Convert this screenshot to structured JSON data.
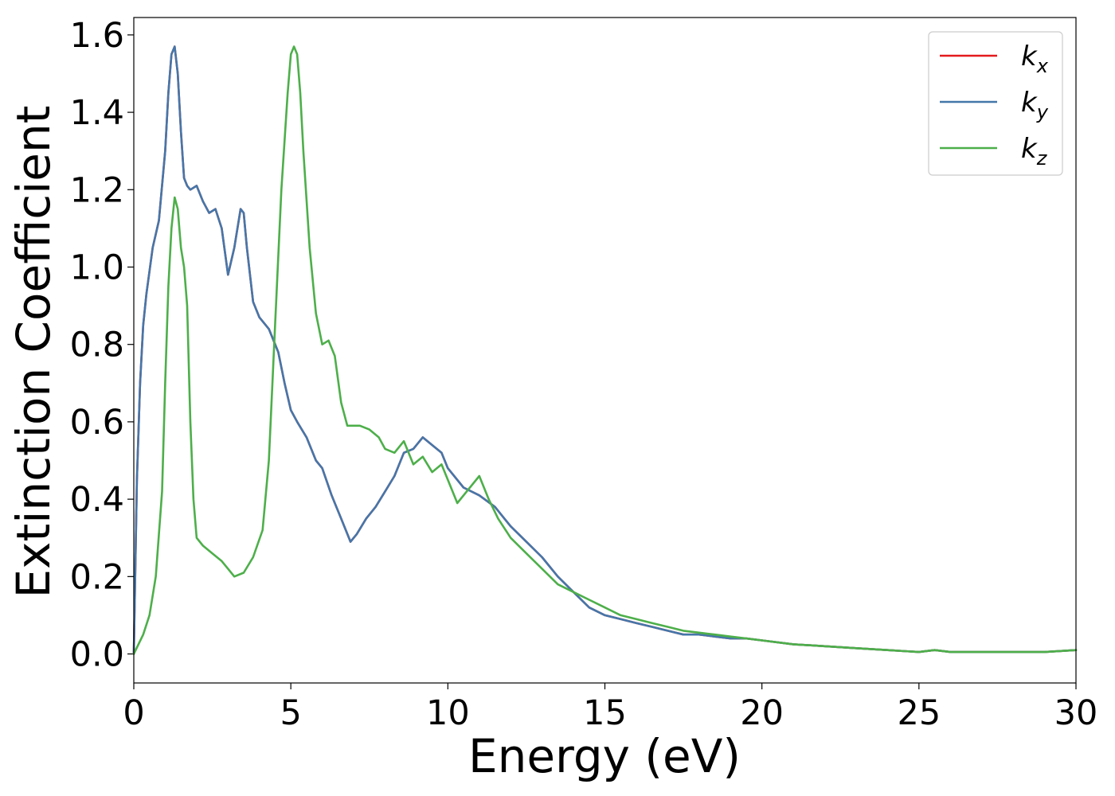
{
  "chart_data": {
    "type": "line",
    "xlabel": "Energy (eV)",
    "ylabel": "Extinction Coefficient",
    "xlim": [
      0,
      30
    ],
    "ylim": [
      -0.075,
      1.645
    ],
    "x_ticks": [
      0,
      5,
      10,
      15,
      20,
      25,
      30
    ],
    "y_ticks": [
      0.0,
      0.2,
      0.4,
      0.6,
      0.8,
      1.0,
      1.2,
      1.4,
      1.6
    ],
    "x_tick_labels": [
      "0",
      "5",
      "10",
      "15",
      "20",
      "25",
      "30"
    ],
    "y_tick_labels": [
      "0.0",
      "0.2",
      "0.4",
      "0.6",
      "0.8",
      "1.0",
      "1.2",
      "1.4",
      "1.6"
    ],
    "grid": false,
    "legend_position": "top-right",
    "series": [
      {
        "name": "k_x",
        "legend_base": "k",
        "legend_sub": "x",
        "color": "#e41a1c",
        "x": [
          0,
          0.1,
          0.2,
          0.3,
          0.4,
          0.6,
          0.8,
          1.0,
          1.1,
          1.2,
          1.3,
          1.4,
          1.5,
          1.6,
          1.7,
          1.8,
          2.0,
          2.2,
          2.4,
          2.6,
          2.8,
          3.0,
          3.2,
          3.4,
          3.5,
          3.6,
          3.8,
          4.0,
          4.3,
          4.6,
          4.8,
          5.0,
          5.2,
          5.5,
          5.8,
          6.0,
          6.3,
          6.6,
          6.9,
          7.1,
          7.4,
          7.7,
          8.0,
          8.3,
          8.6,
          8.9,
          9.2,
          9.5,
          9.8,
          10.0,
          10.5,
          11.0,
          11.5,
          12.0,
          12.5,
          13.0,
          13.5,
          14.0,
          14.5,
          15.0,
          15.5,
          16.0,
          16.5,
          17.0,
          17.5,
          18.0,
          18.5,
          19.0,
          19.5,
          20.0,
          21.0,
          22.0,
          23.0,
          24.0,
          25.0,
          25.5,
          26.0,
          27.0,
          28.0,
          29.0,
          30.0
        ],
        "y": [
          0.0,
          0.45,
          0.7,
          0.85,
          0.93,
          1.05,
          1.12,
          1.3,
          1.45,
          1.55,
          1.57,
          1.5,
          1.35,
          1.23,
          1.21,
          1.2,
          1.21,
          1.17,
          1.14,
          1.15,
          1.1,
          0.98,
          1.05,
          1.15,
          1.14,
          1.05,
          0.91,
          0.87,
          0.84,
          0.78,
          0.7,
          0.63,
          0.6,
          0.56,
          0.5,
          0.48,
          0.41,
          0.35,
          0.29,
          0.31,
          0.35,
          0.38,
          0.42,
          0.46,
          0.52,
          0.53,
          0.56,
          0.54,
          0.52,
          0.48,
          0.43,
          0.41,
          0.38,
          0.33,
          0.29,
          0.25,
          0.2,
          0.16,
          0.12,
          0.1,
          0.09,
          0.08,
          0.07,
          0.06,
          0.05,
          0.05,
          0.045,
          0.04,
          0.04,
          0.035,
          0.025,
          0.02,
          0.015,
          0.01,
          0.005,
          0.01,
          0.005,
          0.005,
          0.005,
          0.005,
          0.01
        ]
      },
      {
        "name": "k_y",
        "legend_base": "k",
        "legend_sub": "y",
        "color": "#4477aa",
        "x": [
          0,
          0.1,
          0.2,
          0.3,
          0.4,
          0.6,
          0.8,
          1.0,
          1.1,
          1.2,
          1.3,
          1.4,
          1.5,
          1.6,
          1.7,
          1.8,
          2.0,
          2.2,
          2.4,
          2.6,
          2.8,
          3.0,
          3.2,
          3.4,
          3.5,
          3.6,
          3.8,
          4.0,
          4.3,
          4.6,
          4.8,
          5.0,
          5.2,
          5.5,
          5.8,
          6.0,
          6.3,
          6.6,
          6.9,
          7.1,
          7.4,
          7.7,
          8.0,
          8.3,
          8.6,
          8.9,
          9.2,
          9.5,
          9.8,
          10.0,
          10.5,
          11.0,
          11.5,
          12.0,
          12.5,
          13.0,
          13.5,
          14.0,
          14.5,
          15.0,
          15.5,
          16.0,
          16.5,
          17.0,
          17.5,
          18.0,
          18.5,
          19.0,
          19.5,
          20.0,
          21.0,
          22.0,
          23.0,
          24.0,
          25.0,
          25.5,
          26.0,
          27.0,
          28.0,
          29.0,
          30.0
        ],
        "y": [
          0.0,
          0.45,
          0.7,
          0.85,
          0.93,
          1.05,
          1.12,
          1.3,
          1.45,
          1.55,
          1.57,
          1.5,
          1.35,
          1.23,
          1.21,
          1.2,
          1.21,
          1.17,
          1.14,
          1.15,
          1.1,
          0.98,
          1.05,
          1.15,
          1.14,
          1.05,
          0.91,
          0.87,
          0.84,
          0.78,
          0.7,
          0.63,
          0.6,
          0.56,
          0.5,
          0.48,
          0.41,
          0.35,
          0.29,
          0.31,
          0.35,
          0.38,
          0.42,
          0.46,
          0.52,
          0.53,
          0.56,
          0.54,
          0.52,
          0.48,
          0.43,
          0.41,
          0.38,
          0.33,
          0.29,
          0.25,
          0.2,
          0.16,
          0.12,
          0.1,
          0.09,
          0.08,
          0.07,
          0.06,
          0.05,
          0.05,
          0.045,
          0.04,
          0.04,
          0.035,
          0.025,
          0.02,
          0.015,
          0.01,
          0.005,
          0.01,
          0.005,
          0.005,
          0.005,
          0.005,
          0.01
        ]
      },
      {
        "name": "k_z",
        "legend_base": "k",
        "legend_sub": "z",
        "color": "#4daf4a",
        "x": [
          0,
          0.3,
          0.5,
          0.7,
          0.9,
          1.0,
          1.1,
          1.2,
          1.3,
          1.4,
          1.5,
          1.6,
          1.7,
          1.8,
          1.9,
          2.0,
          2.2,
          2.5,
          2.8,
          3.0,
          3.2,
          3.5,
          3.8,
          4.1,
          4.3,
          4.5,
          4.7,
          4.9,
          5.0,
          5.1,
          5.2,
          5.3,
          5.4,
          5.6,
          5.8,
          6.0,
          6.2,
          6.4,
          6.6,
          6.8,
          7.0,
          7.2,
          7.5,
          7.8,
          8.0,
          8.3,
          8.6,
          8.9,
          9.2,
          9.5,
          9.8,
          10.0,
          10.3,
          10.6,
          11.0,
          11.3,
          11.6,
          12.0,
          12.5,
          13.0,
          13.5,
          14.0,
          14.5,
          15.0,
          15.5,
          16.0,
          16.5,
          17.0,
          17.5,
          18.0,
          18.5,
          19.0,
          19.5,
          20.0,
          21.0,
          22.0,
          23.0,
          24.0,
          25.0,
          25.5,
          26.0,
          27.0,
          28.0,
          29.0,
          30.0
        ],
        "y": [
          0.0,
          0.05,
          0.1,
          0.2,
          0.42,
          0.7,
          0.95,
          1.1,
          1.18,
          1.15,
          1.05,
          1.0,
          0.9,
          0.6,
          0.4,
          0.3,
          0.28,
          0.26,
          0.24,
          0.22,
          0.2,
          0.21,
          0.25,
          0.32,
          0.5,
          0.85,
          1.2,
          1.45,
          1.55,
          1.57,
          1.55,
          1.45,
          1.3,
          1.05,
          0.88,
          0.8,
          0.81,
          0.77,
          0.65,
          0.59,
          0.59,
          0.59,
          0.58,
          0.56,
          0.53,
          0.52,
          0.55,
          0.49,
          0.51,
          0.47,
          0.49,
          0.45,
          0.39,
          0.42,
          0.46,
          0.4,
          0.35,
          0.3,
          0.26,
          0.22,
          0.18,
          0.16,
          0.14,
          0.12,
          0.1,
          0.09,
          0.08,
          0.07,
          0.06,
          0.055,
          0.05,
          0.045,
          0.04,
          0.035,
          0.025,
          0.02,
          0.015,
          0.01,
          0.005,
          0.01,
          0.005,
          0.005,
          0.005,
          0.005,
          0.01
        ]
      }
    ]
  }
}
